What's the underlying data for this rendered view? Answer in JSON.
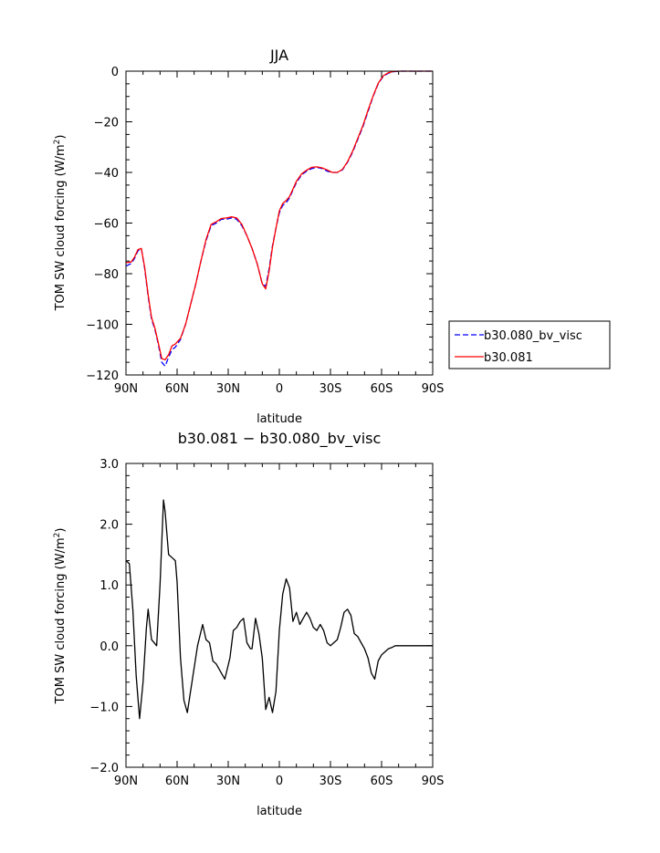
{
  "chart_data": [
    {
      "type": "line",
      "title": "JJA",
      "xlabel": "latitude",
      "ylabel_main": "TOM SW cloud forcing (W/m",
      "ylabel_sup": "2",
      "ylabel_close": ")",
      "xlim": [
        -90,
        90
      ],
      "ylim": [
        -120,
        0
      ],
      "xticks": [
        {
          "v": -90,
          "label": "90N"
        },
        {
          "v": -60,
          "label": "60N"
        },
        {
          "v": -30,
          "label": "30N"
        },
        {
          "v": 0,
          "label": "0"
        },
        {
          "v": 30,
          "label": "30S"
        },
        {
          "v": 60,
          "label": "60S"
        },
        {
          "v": 90,
          "label": "90S"
        }
      ],
      "yticks": [
        {
          "v": 0,
          "label": "0"
        },
        {
          "v": -20,
          "label": "−20"
        },
        {
          "v": -40,
          "label": "−40"
        },
        {
          "v": -60,
          "label": "−60"
        },
        {
          "v": -80,
          "label": "−80"
        },
        {
          "v": -100,
          "label": "−100"
        },
        {
          "v": -120,
          "label": "−120"
        }
      ],
      "legend_position": "right",
      "series": [
        {
          "name": "b30.080_bv_visc",
          "color": "#0000ff",
          "dash": "dashed",
          "x": [
            -90,
            -87,
            -85,
            -83,
            -81,
            -79,
            -77,
            -75,
            -73,
            -71,
            -69,
            -67,
            -65,
            -63,
            -61,
            -58,
            -55,
            -52,
            -49,
            -46,
            -43,
            -40,
            -37,
            -34,
            -31,
            -28,
            -25,
            -22,
            -19,
            -16,
            -13,
            -10,
            -8,
            -6,
            -4,
            -2,
            0,
            2,
            4,
            6,
            8,
            10,
            13,
            16,
            19,
            22,
            25,
            28,
            31,
            34,
            37,
            40,
            43,
            46,
            49,
            52,
            55,
            58,
            61,
            64,
            67,
            70,
            73,
            76,
            80,
            85,
            90
          ],
          "y": [
            -77,
            -76,
            -74,
            -71,
            -70,
            -78,
            -89,
            -98,
            -102,
            -108,
            -115,
            -116.5,
            -113,
            -110,
            -109,
            -106,
            -100,
            -92,
            -84,
            -75,
            -67,
            -61,
            -60,
            -58.5,
            -58.5,
            -58,
            -58.5,
            -61,
            -65,
            -70,
            -76,
            -84,
            -85,
            -78,
            -69,
            -62,
            -56,
            -53,
            -52,
            -50,
            -47,
            -44,
            -41,
            -39.5,
            -38.5,
            -38,
            -38.5,
            -39.5,
            -40,
            -40,
            -39,
            -36,
            -32,
            -27,
            -22,
            -16,
            -10,
            -5,
            -2,
            -0.8,
            -0.2,
            0,
            0,
            0,
            0,
            0,
            0
          ]
        },
        {
          "name": "b30.081",
          "color": "#ff0000",
          "dash": "solid",
          "x": [
            -90,
            -87,
            -85,
            -83,
            -81,
            -79,
            -77,
            -75,
            -73,
            -71,
            -69,
            -67,
            -65,
            -63,
            -61,
            -58,
            -55,
            -52,
            -49,
            -46,
            -43,
            -40,
            -37,
            -34,
            -31,
            -28,
            -25,
            -22,
            -19,
            -16,
            -13,
            -10,
            -8,
            -6,
            -4,
            -2,
            0,
            2,
            4,
            6,
            8,
            10,
            13,
            16,
            19,
            22,
            25,
            28,
            31,
            34,
            37,
            40,
            43,
            46,
            49,
            52,
            55,
            58,
            61,
            64,
            67,
            70,
            73,
            76,
            80,
            85,
            90
          ],
          "y": [
            -75.6,
            -75.4,
            -73.5,
            -70.5,
            -70,
            -77.5,
            -88.4,
            -97.3,
            -101.5,
            -107.5,
            -113.5,
            -114,
            -112,
            -108.5,
            -107.8,
            -105.5,
            -100,
            -92,
            -84,
            -75,
            -66.5,
            -60.5,
            -59.5,
            -58.2,
            -58,
            -57.5,
            -58,
            -60.5,
            -65,
            -70,
            -76,
            -84,
            -86,
            -79,
            -69.5,
            -62,
            -55.2,
            -52.3,
            -51.1,
            -49.5,
            -46.6,
            -43.5,
            -40.6,
            -39.1,
            -38,
            -37.8,
            -38.2,
            -39,
            -40,
            -40,
            -38.8,
            -35.8,
            -31.6,
            -26.6,
            -21.5,
            -15.5,
            -9.8,
            -4.8,
            -1.8,
            -0.6,
            -0.1,
            0,
            0,
            0,
            0,
            0,
            0
          ]
        }
      ]
    },
    {
      "type": "line",
      "title": "b30.081 − b30.080_bv_visc",
      "xlabel": "latitude",
      "ylabel_main": "TOM SW cloud forcing (W/m",
      "ylabel_sup": "2",
      "ylabel_close": ")",
      "xlim": [
        -90,
        90
      ],
      "ylim": [
        -2,
        3
      ],
      "xticks": [
        {
          "v": -90,
          "label": "90N"
        },
        {
          "v": -60,
          "label": "60N"
        },
        {
          "v": -30,
          "label": "30N"
        },
        {
          "v": 0,
          "label": "0"
        },
        {
          "v": 30,
          "label": "30S"
        },
        {
          "v": 60,
          "label": "60S"
        },
        {
          "v": 90,
          "label": "90S"
        }
      ],
      "yticks": [
        {
          "v": 3,
          "label": "3.0"
        },
        {
          "v": 2,
          "label": "2.0"
        },
        {
          "v": 1,
          "label": "1.0"
        },
        {
          "v": 0,
          "label": "0.0"
        },
        {
          "v": -1,
          "label": "−1.0"
        },
        {
          "v": -2,
          "label": "−2.0"
        }
      ],
      "series": [
        {
          "color": "#000000",
          "dash": "solid",
          "x": [
            -90,
            -88,
            -86,
            -84,
            -82,
            -80,
            -78,
            -77,
            -75,
            -72,
            -70,
            -68,
            -67,
            -65,
            -63,
            -61,
            -60,
            -58,
            -56,
            -54,
            -51,
            -48,
            -45,
            -43,
            -41,
            -39,
            -37,
            -34,
            -32,
            -29,
            -27,
            -25,
            -23,
            -21,
            -19,
            -17,
            -16,
            -14,
            -12,
            -10,
            -8,
            -6,
            -4,
            -2,
            0,
            2,
            4,
            6,
            8,
            10,
            12,
            14,
            16,
            18,
            20,
            22,
            24,
            26,
            28,
            30,
            32,
            34,
            36,
            38,
            40,
            42,
            44,
            46,
            48,
            50,
            52,
            54,
            56,
            58,
            60,
            62,
            64,
            66,
            68,
            70,
            73,
            78,
            90
          ],
          "y": [
            1.4,
            1.35,
            0.6,
            -0.5,
            -1.2,
            -0.6,
            0.3,
            0.6,
            0.1,
            0.0,
            1.0,
            2.4,
            2.2,
            1.5,
            1.45,
            1.4,
            1.05,
            -0.2,
            -0.9,
            -1.1,
            -0.55,
            0.0,
            0.35,
            0.1,
            0.05,
            -0.25,
            -0.3,
            -0.45,
            -0.55,
            -0.2,
            0.25,
            0.3,
            0.4,
            0.45,
            0.05,
            -0.05,
            -0.05,
            0.45,
            0.2,
            -0.2,
            -1.05,
            -0.85,
            -1.1,
            -0.75,
            0.25,
            0.85,
            1.1,
            0.95,
            0.4,
            0.55,
            0.35,
            0.45,
            0.55,
            0.45,
            0.3,
            0.25,
            0.35,
            0.25,
            0.05,
            0.0,
            0.05,
            0.1,
            0.3,
            0.55,
            0.6,
            0.5,
            0.2,
            0.15,
            0.05,
            -0.05,
            -0.2,
            -0.45,
            -0.55,
            -0.25,
            -0.15,
            -0.1,
            -0.05,
            -0.03,
            0,
            0,
            0,
            0,
            0
          ]
        }
      ]
    }
  ]
}
